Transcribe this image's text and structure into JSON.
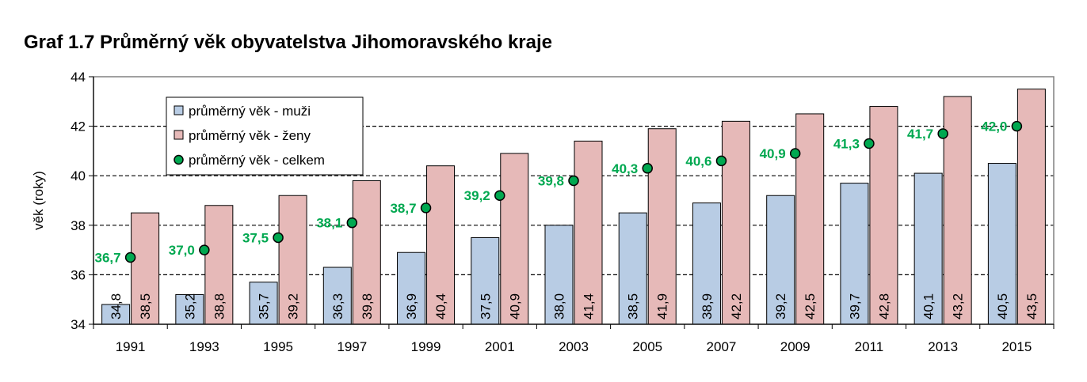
{
  "chart_data": {
    "type": "bar",
    "title": "Graf 1.7 Průměrný věk obyvatelstva Jihomoravského kraje",
    "ylabel": "věk (roky)",
    "xlabel": "",
    "ylim": [
      34,
      44
    ],
    "yticks": [
      34,
      36,
      38,
      40,
      42,
      44
    ],
    "grid": true,
    "legend_position": "top-left",
    "categories": [
      "1991",
      "1993",
      "1995",
      "1997",
      "1999",
      "2001",
      "2003",
      "2005",
      "2007",
      "2009",
      "2011",
      "2013",
      "2015"
    ],
    "series": [
      {
        "name": "průměrný věk - muži",
        "kind": "bar",
        "color": "#b8cce4",
        "values": [
          34.8,
          35.2,
          35.7,
          36.3,
          36.9,
          37.5,
          38.0,
          38.5,
          38.9,
          39.2,
          39.7,
          40.1,
          40.5
        ],
        "labels": [
          "34,8",
          "35,2",
          "35,7",
          "36,3",
          "36,9",
          "37,5",
          "38,0",
          "38,5",
          "38,9",
          "39,2",
          "39,7",
          "40,1",
          "40,5"
        ]
      },
      {
        "name": "průměrný věk - ženy",
        "kind": "bar",
        "color": "#e6b9b8",
        "values": [
          38.5,
          38.8,
          39.2,
          39.8,
          40.4,
          40.9,
          41.4,
          41.9,
          42.2,
          42.5,
          42.8,
          43.2,
          43.5
        ],
        "labels": [
          "38,5",
          "38,8",
          "39,2",
          "39,8",
          "40,4",
          "40,9",
          "41,4",
          "41,9",
          "42,2",
          "42,5",
          "42,8",
          "43,2",
          "43,5"
        ]
      },
      {
        "name": "průměrný věk - celkem",
        "kind": "point",
        "color": "#00a850",
        "values": [
          36.7,
          37.0,
          37.5,
          38.1,
          38.7,
          39.2,
          39.8,
          40.3,
          40.6,
          40.9,
          41.3,
          41.7,
          42.0
        ],
        "labels": [
          "36,7",
          "37,0",
          "37,5",
          "38,1",
          "38,7",
          "39,2",
          "39,8",
          "40,3",
          "40,6",
          "40,9",
          "41,3",
          "41,7",
          "42,0"
        ]
      }
    ]
  }
}
